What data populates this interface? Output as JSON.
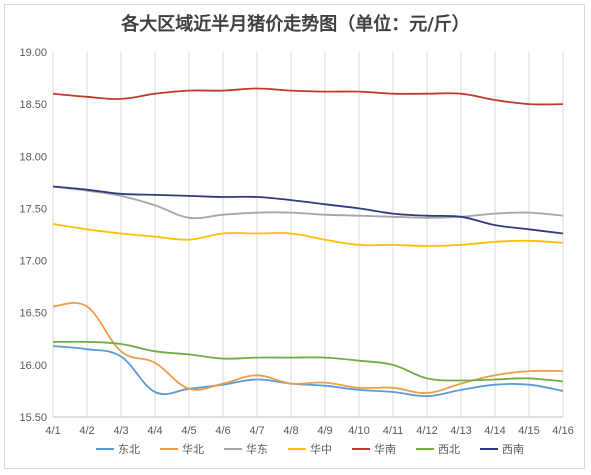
{
  "chart_data": {
    "type": "line",
    "title": "各大区域近半月猪价走势图（单位：元/斤）",
    "xlabel": "",
    "ylabel": "",
    "ylim": [
      15.5,
      19.0
    ],
    "y_ticks": [
      "15.50",
      "16.00",
      "16.50",
      "17.00",
      "17.50",
      "18.00",
      "18.50",
      "19.00"
    ],
    "categories": [
      "4/1",
      "4/2",
      "4/3",
      "4/4",
      "4/5",
      "4/6",
      "4/7",
      "4/8",
      "4/9",
      "4/10",
      "4/11",
      "4/12",
      "4/13",
      "4/14",
      "4/15",
      "4/16"
    ],
    "grid": "vertical",
    "legend_position": "bottom",
    "series": [
      {
        "name": "东北",
        "color": "#5b9bd5",
        "values": [
          16.18,
          16.15,
          16.08,
          15.74,
          15.77,
          15.81,
          15.86,
          15.82,
          15.8,
          15.76,
          15.74,
          15.7,
          15.76,
          15.81,
          15.81,
          15.75
        ]
      },
      {
        "name": "华北",
        "color": "#ed9e4a",
        "values": [
          16.56,
          16.56,
          16.13,
          16.02,
          15.77,
          15.82,
          15.9,
          15.82,
          15.83,
          15.78,
          15.78,
          15.73,
          15.82,
          15.9,
          15.94,
          15.94
        ]
      },
      {
        "name": "华东",
        "color": "#a5a5a5",
        "values": [
          17.71,
          17.67,
          17.62,
          17.53,
          17.41,
          17.44,
          17.46,
          17.46,
          17.44,
          17.43,
          17.42,
          17.41,
          17.42,
          17.45,
          17.46,
          17.43
        ]
      },
      {
        "name": "华中",
        "color": "#ffc000",
        "values": [
          17.35,
          17.3,
          17.26,
          17.23,
          17.2,
          17.26,
          17.26,
          17.26,
          17.2,
          17.15,
          17.15,
          17.14,
          17.15,
          17.18,
          17.19,
          17.17
        ]
      },
      {
        "name": "华南",
        "color": "#c0392b",
        "values": [
          18.6,
          18.57,
          18.55,
          18.6,
          18.63,
          18.63,
          18.65,
          18.63,
          18.62,
          18.62,
          18.6,
          18.6,
          18.6,
          18.54,
          18.5,
          18.5
        ]
      },
      {
        "name": "西北",
        "color": "#70ad47",
        "values": [
          16.22,
          16.22,
          16.2,
          16.13,
          16.1,
          16.06,
          16.07,
          16.07,
          16.07,
          16.04,
          16.0,
          15.87,
          15.85,
          15.86,
          15.87,
          15.84
        ]
      },
      {
        "name": "西南",
        "color": "#2e3b7d",
        "values": [
          17.71,
          17.68,
          17.64,
          17.63,
          17.62,
          17.61,
          17.61,
          17.58,
          17.54,
          17.5,
          17.45,
          17.43,
          17.42,
          17.34,
          17.3,
          17.26
        ]
      }
    ]
  }
}
